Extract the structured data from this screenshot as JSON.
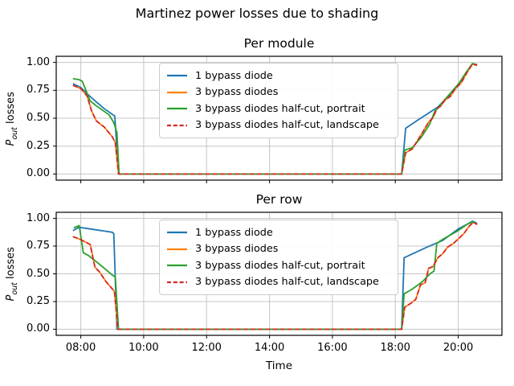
{
  "figure": {
    "title": "Martinez power losses due to shading",
    "background": "#ffffff",
    "grid_color": "#c4c4c4",
    "spine_color": "#000000",
    "tick_color": "#000000"
  },
  "legend": {
    "items": [
      {
        "label": "1 bypass diode",
        "color": "#1f77b4",
        "linestyle": "solid"
      },
      {
        "label": "3 bypass diodes",
        "color": "#ff7f0e",
        "linestyle": "solid"
      },
      {
        "label": "3 bypass diodes half-cut, portrait",
        "color": "#2ca02c",
        "linestyle": "solid"
      },
      {
        "label": "3 bypass diodes half-cut, landscape",
        "color": "#d62728",
        "linestyle": "dashed"
      }
    ]
  },
  "chart_data": [
    {
      "type": "line",
      "title": "Per module",
      "xlabel": "Time",
      "ylabel": "P_out losses",
      "ylabel_rich": {
        "var": "P",
        "sub": "out",
        "rest": " losses"
      },
      "x_units": "decimal_hours",
      "xlim": [
        7.22,
        21.39
      ],
      "ylim": [
        -0.055,
        1.055
      ],
      "grid": true,
      "legend_position": "upper center",
      "x_ticks": {
        "values": [
          8,
          10,
          12,
          14,
          16,
          18,
          20
        ],
        "labels": [
          "08:00",
          "10:00",
          "12:00",
          "14:00",
          "16:00",
          "18:00",
          "20:00"
        ],
        "show_labels": false
      },
      "y_ticks": {
        "values": [
          0,
          0.25,
          0.5,
          0.75,
          1.0
        ],
        "labels": [
          "0.00",
          "0.25",
          "0.50",
          "0.75",
          "1.00"
        ],
        "show_labels": true
      },
      "series": [
        {
          "name": "1 bypass diode",
          "color": "#1f77b4",
          "linestyle": "solid",
          "points": [
            [
              7.75,
              0.81
            ],
            [
              8.0,
              0.775
            ],
            [
              8.2,
              0.72
            ],
            [
              8.5,
              0.645
            ],
            [
              8.75,
              0.585
            ],
            [
              9.0,
              0.535
            ],
            [
              9.08,
              0.52
            ],
            [
              9.2,
              0.0
            ],
            [
              18.2,
              0.0
            ],
            [
              18.33,
              0.41
            ],
            [
              18.7,
              0.48
            ],
            [
              19.0,
              0.535
            ],
            [
              19.35,
              0.6
            ],
            [
              19.7,
              0.7
            ],
            [
              20.03,
              0.8
            ],
            [
              20.25,
              0.9
            ],
            [
              20.45,
              0.985
            ],
            [
              20.6,
              0.975
            ]
          ]
        },
        {
          "name": "3 bypass diodes",
          "color": "#ff7f0e",
          "linestyle": "solid",
          "points": [
            [
              7.75,
              0.795
            ],
            [
              8.0,
              0.765
            ],
            [
              8.2,
              0.7
            ],
            [
              8.35,
              0.56
            ],
            [
              8.5,
              0.475
            ],
            [
              8.75,
              0.42
            ],
            [
              9.0,
              0.335
            ],
            [
              9.1,
              0.28
            ],
            [
              9.2,
              0.0
            ],
            [
              18.2,
              0.0
            ],
            [
              18.33,
              0.19
            ],
            [
              18.54,
              0.225
            ],
            [
              18.84,
              0.36
            ],
            [
              19.06,
              0.465
            ],
            [
              19.2,
              0.505
            ],
            [
              19.32,
              0.585
            ],
            [
              19.45,
              0.61
            ],
            [
              19.57,
              0.66
            ],
            [
              19.75,
              0.695
            ],
            [
              19.92,
              0.77
            ],
            [
              20.09,
              0.815
            ],
            [
              20.3,
              0.92
            ],
            [
              20.45,
              0.985
            ],
            [
              20.6,
              0.975
            ]
          ]
        },
        {
          "name": "3 bypass diodes half-cut, portrait",
          "color": "#2ca02c",
          "linestyle": "solid",
          "points": [
            [
              7.75,
              0.855
            ],
            [
              7.95,
              0.845
            ],
            [
              8.05,
              0.83
            ],
            [
              8.3,
              0.655
            ],
            [
              8.5,
              0.61
            ],
            [
              8.9,
              0.53
            ],
            [
              9.05,
              0.46
            ],
            [
              9.15,
              0.37
            ],
            [
              9.22,
              0.0
            ],
            [
              18.2,
              0.0
            ],
            [
              18.3,
              0.215
            ],
            [
              18.54,
              0.235
            ],
            [
              18.84,
              0.335
            ],
            [
              19.09,
              0.445
            ],
            [
              19.26,
              0.565
            ],
            [
              19.39,
              0.6
            ],
            [
              19.52,
              0.65
            ],
            [
              19.77,
              0.73
            ],
            [
              20.03,
              0.815
            ],
            [
              20.25,
              0.91
            ],
            [
              20.45,
              0.99
            ],
            [
              20.6,
              0.98
            ]
          ]
        },
        {
          "name": "3 bypass diodes half-cut, landscape",
          "color": "#d62728",
          "linestyle": "dashed",
          "points": [
            [
              7.75,
              0.795
            ],
            [
              8.0,
              0.765
            ],
            [
              8.2,
              0.7
            ],
            [
              8.35,
              0.56
            ],
            [
              8.5,
              0.475
            ],
            [
              8.75,
              0.42
            ],
            [
              9.0,
              0.335
            ],
            [
              9.1,
              0.28
            ],
            [
              9.2,
              0.0
            ],
            [
              18.2,
              0.0
            ],
            [
              18.33,
              0.19
            ],
            [
              18.54,
              0.225
            ],
            [
              18.84,
              0.36
            ],
            [
              19.06,
              0.465
            ],
            [
              19.2,
              0.505
            ],
            [
              19.32,
              0.585
            ],
            [
              19.45,
              0.61
            ],
            [
              19.57,
              0.66
            ],
            [
              19.75,
              0.695
            ],
            [
              19.92,
              0.77
            ],
            [
              20.09,
              0.815
            ],
            [
              20.3,
              0.92
            ],
            [
              20.45,
              0.985
            ],
            [
              20.6,
              0.975
            ]
          ]
        }
      ]
    },
    {
      "type": "line",
      "title": "Per row",
      "xlabel": "Time",
      "ylabel": "P_out losses",
      "ylabel_rich": {
        "var": "P",
        "sub": "out",
        "rest": " losses"
      },
      "x_units": "decimal_hours",
      "xlim": [
        7.22,
        21.39
      ],
      "ylim": [
        -0.055,
        1.055
      ],
      "grid": true,
      "legend_position": "upper center",
      "x_ticks": {
        "values": [
          8,
          10,
          12,
          14,
          16,
          18,
          20
        ],
        "labels": [
          "08:00",
          "10:00",
          "12:00",
          "14:00",
          "16:00",
          "18:00",
          "20:00"
        ],
        "show_labels": true
      },
      "y_ticks": {
        "values": [
          0,
          0.25,
          0.5,
          0.75,
          1.0
        ],
        "labels": [
          "0.00",
          "0.25",
          "0.50",
          "0.75",
          "1.00"
        ],
        "show_labels": true
      },
      "series": [
        {
          "name": "1 bypass diode",
          "color": "#1f77b4",
          "linestyle": "solid",
          "points": [
            [
              7.75,
              0.89
            ],
            [
              7.95,
              0.92
            ],
            [
              8.3,
              0.905
            ],
            [
              9.0,
              0.875
            ],
            [
              9.05,
              0.862
            ],
            [
              9.15,
              0.0
            ],
            [
              18.2,
              0.0
            ],
            [
              18.28,
              0.645
            ],
            [
              19.0,
              0.74
            ],
            [
              19.5,
              0.8
            ],
            [
              20.0,
              0.905
            ],
            [
              20.3,
              0.95
            ],
            [
              20.45,
              0.975
            ],
            [
              20.6,
              0.955
            ]
          ]
        },
        {
          "name": "3 bypass diodes",
          "color": "#ff7f0e",
          "linestyle": "solid",
          "points": [
            [
              7.75,
              0.835
            ],
            [
              7.95,
              0.815
            ],
            [
              8.3,
              0.765
            ],
            [
              8.45,
              0.56
            ],
            [
              8.6,
              0.515
            ],
            [
              8.8,
              0.43
            ],
            [
              9.0,
              0.365
            ],
            [
              9.07,
              0.34
            ],
            [
              9.18,
              0.0
            ],
            [
              18.2,
              0.0
            ],
            [
              18.3,
              0.2
            ],
            [
              18.5,
              0.235
            ],
            [
              18.65,
              0.27
            ],
            [
              18.8,
              0.4
            ],
            [
              18.95,
              0.42
            ],
            [
              19.06,
              0.55
            ],
            [
              19.2,
              0.565
            ],
            [
              19.35,
              0.645
            ],
            [
              19.5,
              0.68
            ],
            [
              19.66,
              0.74
            ],
            [
              19.85,
              0.775
            ],
            [
              20.17,
              0.86
            ],
            [
              20.35,
              0.93
            ],
            [
              20.48,
              0.965
            ],
            [
              20.6,
              0.945
            ]
          ]
        },
        {
          "name": "3 bypass diodes half-cut, portrait",
          "color": "#2ca02c",
          "linestyle": "solid",
          "points": [
            [
              7.78,
              0.915
            ],
            [
              7.95,
              0.935
            ],
            [
              8.08,
              0.69
            ],
            [
              8.25,
              0.665
            ],
            [
              8.6,
              0.585
            ],
            [
              9.0,
              0.49
            ],
            [
              9.1,
              0.47
            ],
            [
              9.2,
              0.0
            ],
            [
              18.2,
              0.0
            ],
            [
              18.28,
              0.32
            ],
            [
              18.5,
              0.355
            ],
            [
              18.75,
              0.405
            ],
            [
              18.9,
              0.44
            ],
            [
              19.1,
              0.5
            ],
            [
              19.23,
              0.525
            ],
            [
              19.32,
              0.775
            ],
            [
              19.5,
              0.81
            ],
            [
              19.66,
              0.835
            ],
            [
              20.0,
              0.89
            ],
            [
              20.3,
              0.95
            ],
            [
              20.45,
              0.968
            ],
            [
              20.58,
              0.95
            ]
          ]
        },
        {
          "name": "3 bypass diodes half-cut, landscape",
          "color": "#d62728",
          "linestyle": "dashed",
          "points": [
            [
              7.75,
              0.835
            ],
            [
              7.95,
              0.815
            ],
            [
              8.3,
              0.765
            ],
            [
              8.45,
              0.56
            ],
            [
              8.6,
              0.515
            ],
            [
              8.8,
              0.43
            ],
            [
              9.0,
              0.365
            ],
            [
              9.07,
              0.34
            ],
            [
              9.18,
              0.0
            ],
            [
              18.2,
              0.0
            ],
            [
              18.3,
              0.2
            ],
            [
              18.5,
              0.235
            ],
            [
              18.65,
              0.27
            ],
            [
              18.8,
              0.4
            ],
            [
              18.95,
              0.42
            ],
            [
              19.06,
              0.55
            ],
            [
              19.2,
              0.565
            ],
            [
              19.35,
              0.645
            ],
            [
              19.5,
              0.68
            ],
            [
              19.66,
              0.74
            ],
            [
              19.85,
              0.775
            ],
            [
              20.17,
              0.86
            ],
            [
              20.35,
              0.93
            ],
            [
              20.48,
              0.965
            ],
            [
              20.6,
              0.945
            ]
          ]
        }
      ]
    }
  ]
}
